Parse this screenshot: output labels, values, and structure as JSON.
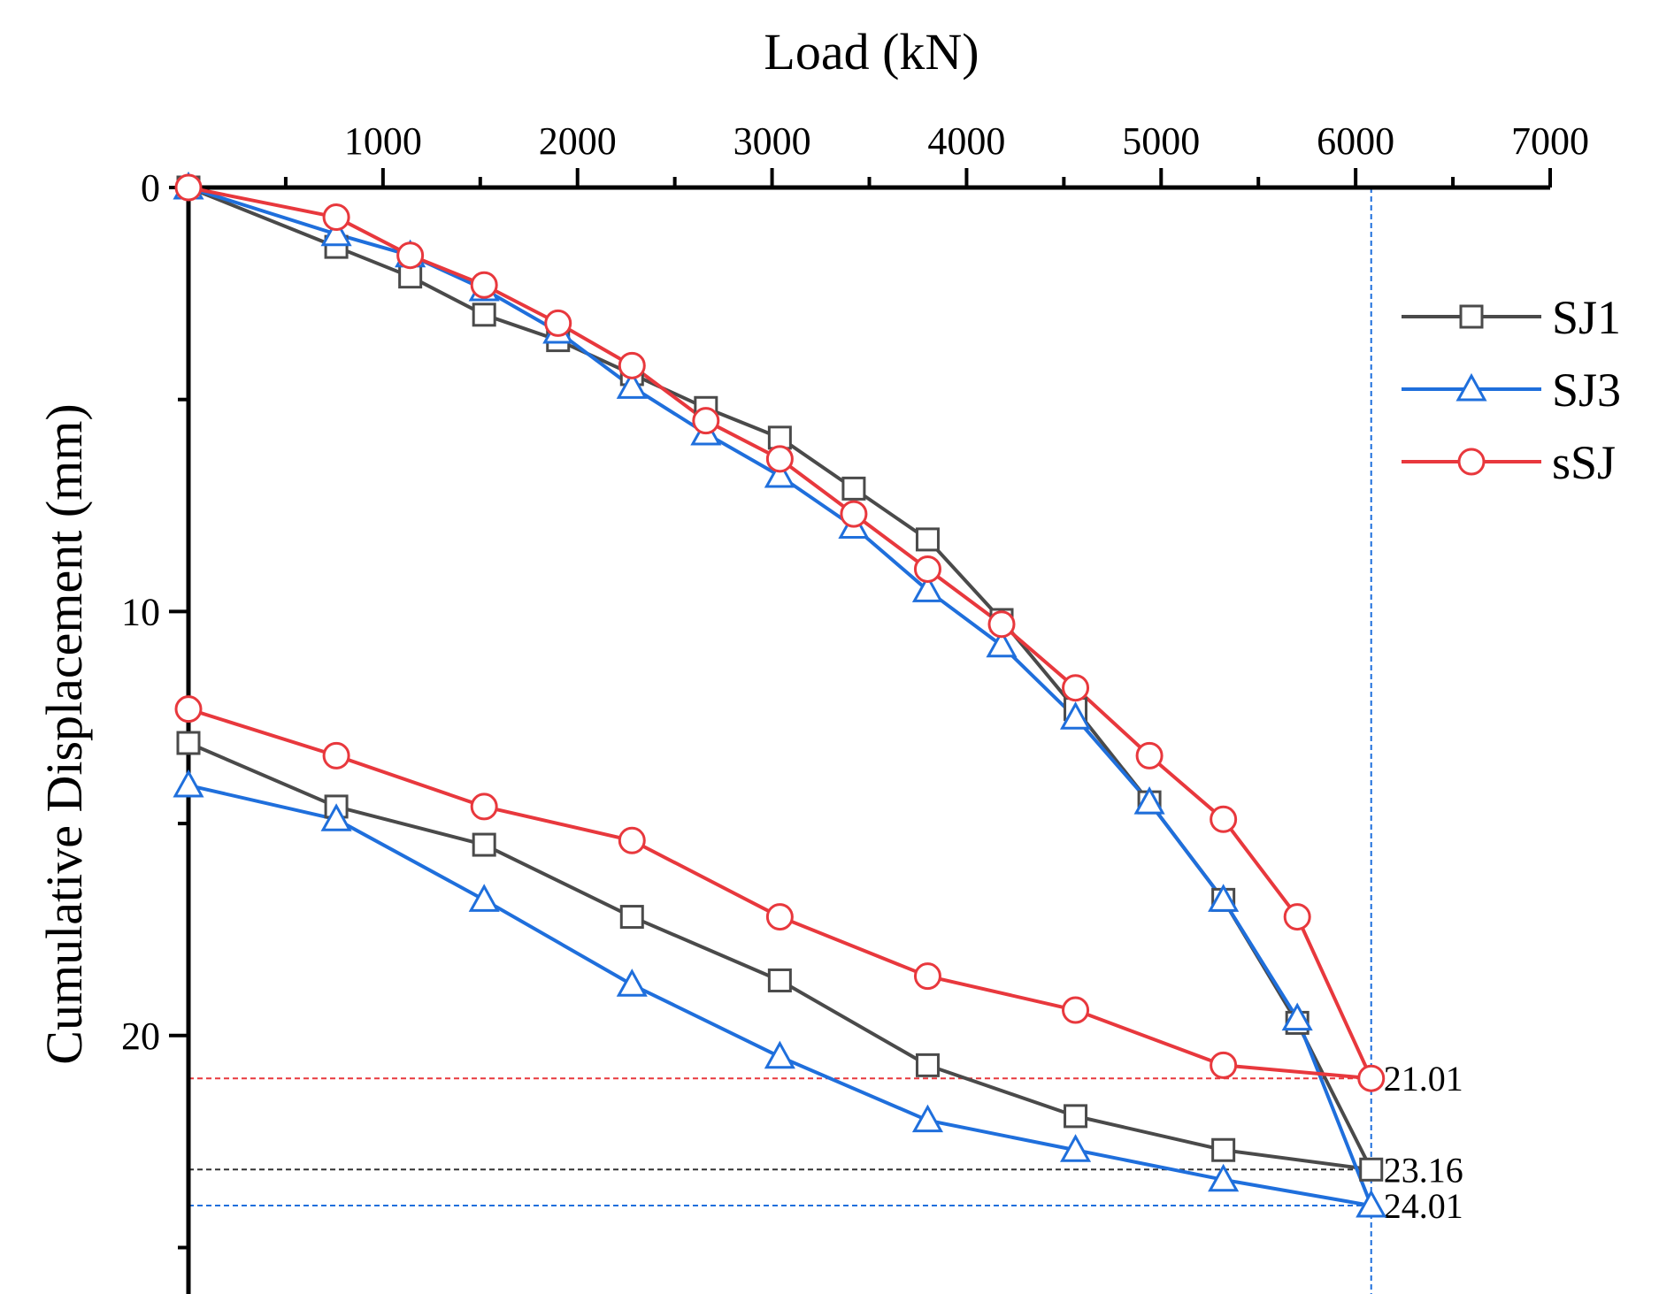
{
  "chart_data": {
    "type": "line",
    "title": "",
    "xlabel": "Load (kN)",
    "ylabel": "Cumulative Displacement (mm)",
    "x_axis_position": "top",
    "y_axis_direction": "down",
    "xlim": [
      0,
      7000
    ],
    "ylim": [
      0,
      26
    ],
    "xticks": [
      1000,
      2000,
      3000,
      4000,
      5000,
      6000,
      7000
    ],
    "xtick_labels": [
      "1000",
      "2000",
      "3000",
      "4000",
      "5000",
      "6000",
      "7000"
    ],
    "yticks": [
      0,
      10,
      20
    ],
    "ytick_labels": [
      "0",
      "10",
      "20"
    ],
    "legend_position": "right-top",
    "series": [
      {
        "name": "SJ1",
        "color": "#4a4a4a",
        "marker": "square",
        "loading": [
          [
            0,
            0
          ],
          [
            760,
            1.4
          ],
          [
            1140,
            2.1
          ],
          [
            1520,
            3.0
          ],
          [
            1900,
            3.6
          ],
          [
            2280,
            4.4
          ],
          [
            2660,
            5.2
          ],
          [
            3040,
            5.9
          ],
          [
            3420,
            7.1
          ],
          [
            3800,
            8.3
          ],
          [
            4180,
            10.2
          ],
          [
            4560,
            12.3
          ],
          [
            4940,
            14.5
          ],
          [
            5320,
            16.8
          ],
          [
            5700,
            19.7
          ],
          [
            6080,
            23.16
          ]
        ],
        "unloading": [
          [
            6080,
            23.16
          ],
          [
            5320,
            22.7
          ],
          [
            4560,
            21.9
          ],
          [
            3800,
            20.7
          ],
          [
            3040,
            18.7
          ],
          [
            2280,
            17.2
          ],
          [
            1520,
            15.5
          ],
          [
            760,
            14.6
          ],
          [
            0,
            13.1
          ]
        ]
      },
      {
        "name": "SJ3",
        "color": "#1f6fdc",
        "marker": "triangle",
        "loading": [
          [
            0,
            0
          ],
          [
            760,
            1.1
          ],
          [
            1140,
            1.6
          ],
          [
            1520,
            2.4
          ],
          [
            1900,
            3.4
          ],
          [
            2280,
            4.7
          ],
          [
            2660,
            5.8
          ],
          [
            3040,
            6.8
          ],
          [
            3420,
            8.0
          ],
          [
            3800,
            9.5
          ],
          [
            4180,
            10.8
          ],
          [
            4560,
            12.5
          ],
          [
            4940,
            14.5
          ],
          [
            5320,
            16.8
          ],
          [
            5700,
            19.6
          ],
          [
            6080,
            24.01
          ]
        ],
        "unloading": [
          [
            6080,
            24.01
          ],
          [
            5320,
            23.4
          ],
          [
            4560,
            22.7
          ],
          [
            3800,
            22.0
          ],
          [
            3040,
            20.5
          ],
          [
            2280,
            18.8
          ],
          [
            1520,
            16.8
          ],
          [
            760,
            14.9
          ],
          [
            0,
            14.1
          ]
        ]
      },
      {
        "name": "sSJ",
        "color": "#e8383d",
        "marker": "circle",
        "loading": [
          [
            0,
            0
          ],
          [
            760,
            0.7
          ],
          [
            1140,
            1.6
          ],
          [
            1520,
            2.3
          ],
          [
            1900,
            3.2
          ],
          [
            2280,
            4.2
          ],
          [
            2660,
            5.5
          ],
          [
            3040,
            6.4
          ],
          [
            3420,
            7.7
          ],
          [
            3800,
            9.0
          ],
          [
            4180,
            10.3
          ],
          [
            4560,
            11.8
          ],
          [
            4940,
            13.4
          ],
          [
            5320,
            14.9
          ],
          [
            5700,
            17.2
          ],
          [
            6080,
            21.01
          ]
        ],
        "unloading": [
          [
            6080,
            21.01
          ],
          [
            5320,
            20.7
          ],
          [
            4560,
            19.4
          ],
          [
            3800,
            18.6
          ],
          [
            3040,
            17.2
          ],
          [
            2280,
            15.4
          ],
          [
            1520,
            14.6
          ],
          [
            760,
            13.4
          ],
          [
            0,
            12.3
          ]
        ]
      }
    ],
    "reference_lines": {
      "vertical_x": 6080,
      "horizontal": [
        {
          "y": 21.01,
          "label": "21.01",
          "color": "#e8383d"
        },
        {
          "y": 23.16,
          "label": "23.16",
          "color": "#333333"
        },
        {
          "y": 24.01,
          "label": "24.01",
          "color": "#1f6fdc"
        }
      ]
    }
  }
}
